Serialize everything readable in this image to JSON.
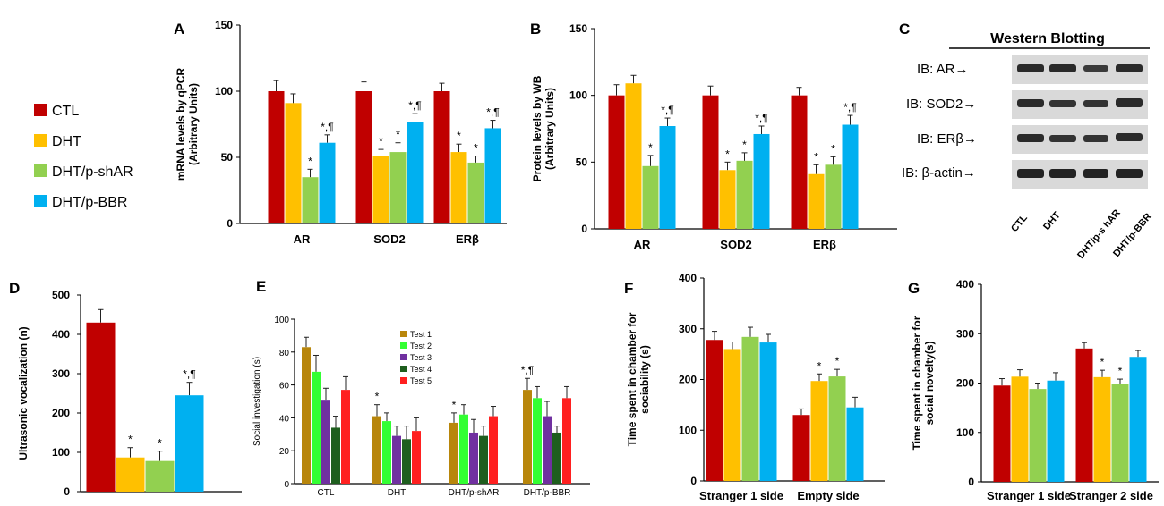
{
  "figure": {
    "legend": [
      {
        "label": "CTL",
        "color": "#C00000"
      },
      {
        "label": "DHT",
        "color": "#FFC000"
      },
      {
        "label": "DHT/p-shAR",
        "color": "#92D050"
      },
      {
        "label": "DHT/p-BBR",
        "color": "#00B0F0"
      }
    ],
    "western_blot": {
      "letter": "C",
      "title": "Western Blotting",
      "rows": [
        {
          "label": "IB: AR→"
        },
        {
          "label": "IB: SOD2→"
        },
        {
          "label": "IB: ERβ→"
        },
        {
          "label": "IB: β-actin→"
        }
      ],
      "lanes": [
        "CTL",
        "DHT",
        "DHT/p-s hAR",
        "DHT/p-BBR"
      ]
    },
    "panel_e_legend": [
      {
        "label": "Test 1",
        "color": "#B8860B"
      },
      {
        "label": "Test 2",
        "color": "#33FF33"
      },
      {
        "label": "Test 3",
        "color": "#7030A0"
      },
      {
        "label": "Test 4",
        "color": "#1E5E1E"
      },
      {
        "label": "Test 5",
        "color": "#FF2020"
      }
    ]
  },
  "chart_data": [
    {
      "id": "A",
      "letter": "A",
      "type": "bar",
      "ylabel": "mRNA levels by qPCR (Arbitrary Units)",
      "ylabel_lines": [
        "mRNA levels by qPCR",
        "(Arbitrary Units)"
      ],
      "ylim": [
        0,
        150
      ],
      "yticks": [
        "0",
        "50",
        "100",
        "150"
      ],
      "categories": [
        "AR",
        "SOD2",
        "ERβ"
      ],
      "series": [
        {
          "name": "CTL",
          "values": [
            100,
            100,
            100
          ],
          "errors": [
            8,
            7,
            6
          ]
        },
        {
          "name": "DHT",
          "values": [
            91,
            51,
            54
          ],
          "errors": [
            7,
            5,
            6
          ]
        },
        {
          "name": "DHT/p-shAR",
          "values": [
            35,
            54,
            46
          ],
          "errors": [
            6,
            7,
            5
          ]
        },
        {
          "name": "DHT/p-BBR",
          "values": [
            61,
            77,
            72
          ],
          "errors": [
            6,
            6,
            6
          ]
        }
      ],
      "significance": [
        {
          "category": 0,
          "series": 2,
          "mark": "*"
        },
        {
          "category": 0,
          "series": 3,
          "mark": "*,¶"
        },
        {
          "category": 1,
          "series": 1,
          "mark": "*"
        },
        {
          "category": 1,
          "series": 2,
          "mark": "*"
        },
        {
          "category": 1,
          "series": 3,
          "mark": "*,¶"
        },
        {
          "category": 2,
          "series": 1,
          "mark": "*"
        },
        {
          "category": 2,
          "series": 2,
          "mark": "*"
        },
        {
          "category": 2,
          "series": 3,
          "mark": "*,¶"
        }
      ]
    },
    {
      "id": "B",
      "letter": "B",
      "type": "bar",
      "ylabel": "Protein levels by WB (Arbitrary Units)",
      "ylabel_lines": [
        "Protein levels by WB",
        "(Arbitrary Units)"
      ],
      "ylim": [
        0,
        150
      ],
      "yticks": [
        "0",
        "50",
        "100",
        "150"
      ],
      "categories": [
        "AR",
        "SOD2",
        "ERβ"
      ],
      "series": [
        {
          "name": "CTL",
          "values": [
            100,
            100,
            100
          ],
          "errors": [
            8,
            7,
            6
          ]
        },
        {
          "name": "DHT",
          "values": [
            109,
            44,
            41
          ],
          "errors": [
            6,
            6,
            7
          ]
        },
        {
          "name": "DHT/p-shAR",
          "values": [
            47,
            51,
            48
          ],
          "errors": [
            8,
            6,
            6
          ]
        },
        {
          "name": "DHT/p-BBR",
          "values": [
            77,
            71,
            78
          ],
          "errors": [
            6,
            6,
            7
          ]
        }
      ],
      "significance": [
        {
          "category": 0,
          "series": 2,
          "mark": "*"
        },
        {
          "category": 0,
          "series": 3,
          "mark": "*,¶"
        },
        {
          "category": 1,
          "series": 1,
          "mark": "*"
        },
        {
          "category": 1,
          "series": 2,
          "mark": "*"
        },
        {
          "category": 1,
          "series": 3,
          "mark": "*,¶"
        },
        {
          "category": 2,
          "series": 1,
          "mark": "*"
        },
        {
          "category": 2,
          "series": 2,
          "mark": "*"
        },
        {
          "category": 2,
          "series": 3,
          "mark": "*,¶"
        }
      ]
    },
    {
      "id": "D",
      "letter": "D",
      "type": "bar",
      "ylabel": "Ultrasonic vocalization (n)",
      "ylabel_lines": [
        "Ultrasonic vocalization (n)"
      ],
      "ylim": [
        0,
        500
      ],
      "yticks": [
        "0",
        "100",
        "200",
        "300",
        "400",
        "500"
      ],
      "categories": [
        ""
      ],
      "series": [
        {
          "name": "CTL",
          "values": [
            430
          ],
          "errors": [
            33
          ]
        },
        {
          "name": "DHT",
          "values": [
            87
          ],
          "errors": [
            25
          ]
        },
        {
          "name": "DHT/p-shAR",
          "values": [
            78
          ],
          "errors": [
            25
          ]
        },
        {
          "name": "DHT/p-BBR",
          "values": [
            245
          ],
          "errors": [
            33
          ]
        }
      ],
      "significance": [
        {
          "category": 0,
          "series": 1,
          "mark": "*"
        },
        {
          "category": 0,
          "series": 2,
          "mark": "*"
        },
        {
          "category": 0,
          "series": 3,
          "mark": "*,¶"
        }
      ]
    },
    {
      "id": "E",
      "letter": "E",
      "type": "bar",
      "ylabel": "Social investigation (s)",
      "ylabel_lines": [
        "Social investigation (s)"
      ],
      "ylim": [
        0,
        100
      ],
      "yticks": [
        "0",
        "20",
        "40",
        "60",
        "80",
        "100"
      ],
      "categories": [
        "CTL",
        "DHT",
        "DHT/p-shAR",
        "DHT/p-BBR"
      ],
      "series": [
        {
          "name": "Test 1",
          "values": [
            83,
            41,
            37,
            57
          ],
          "errors": [
            6,
            7,
            6,
            7
          ]
        },
        {
          "name": "Test 2",
          "values": [
            68,
            38,
            42,
            52
          ],
          "errors": [
            10,
            5,
            6,
            7
          ]
        },
        {
          "name": "Test 3",
          "values": [
            51,
            29,
            31,
            41
          ],
          "errors": [
            7,
            6,
            8,
            9
          ]
        },
        {
          "name": "Test 4",
          "values": [
            34,
            27,
            29,
            31
          ],
          "errors": [
            7,
            8,
            6,
            4
          ]
        },
        {
          "name": "Test 5",
          "values": [
            57,
            32,
            41,
            52
          ],
          "errors": [
            8,
            8,
            6,
            7
          ]
        }
      ],
      "significance": [
        {
          "category": 1,
          "series": 0,
          "mark": "*"
        },
        {
          "category": 2,
          "series": 0,
          "mark": "*"
        },
        {
          "category": 3,
          "series": 0,
          "mark": "*,¶"
        }
      ]
    },
    {
      "id": "F",
      "letter": "F",
      "type": "bar",
      "ylabel": "Time spent in chamber for sociability (s)",
      "ylabel_lines": [
        "Time spent in chamber for",
        "sociability (s)"
      ],
      "ylim": [
        0,
        400
      ],
      "yticks": [
        "0",
        "100",
        "200",
        "300",
        "400"
      ],
      "categories": [
        "Stranger 1 side",
        "Empty side"
      ],
      "series": [
        {
          "name": "CTL",
          "values": [
            278,
            130
          ],
          "errors": [
            17,
            12
          ]
        },
        {
          "name": "DHT",
          "values": [
            260,
            197
          ],
          "errors": [
            14,
            14
          ]
        },
        {
          "name": "DHT/p-shAR",
          "values": [
            284,
            206
          ],
          "errors": [
            19,
            14
          ]
        },
        {
          "name": "DHT/p-BBR",
          "values": [
            273,
            145
          ],
          "errors": [
            16,
            20
          ]
        }
      ],
      "significance": [
        {
          "category": 1,
          "series": 1,
          "mark": "*"
        },
        {
          "category": 1,
          "series": 2,
          "mark": "*"
        }
      ]
    },
    {
      "id": "G",
      "letter": "G",
      "type": "bar",
      "ylabel": "Time spent in chamber for social novelty (s)",
      "ylabel_lines": [
        "Time spent in chamber for",
        "social novelty(s)"
      ],
      "ylim": [
        0,
        400
      ],
      "yticks": [
        "0",
        "100",
        "200",
        "300",
        "400"
      ],
      "categories": [
        "Stranger 1 side",
        "Stranger 2 side"
      ],
      "series": [
        {
          "name": "CTL",
          "values": [
            195,
            270
          ],
          "errors": [
            14,
            12
          ]
        },
        {
          "name": "DHT",
          "values": [
            213,
            212
          ],
          "errors": [
            14,
            14
          ]
        },
        {
          "name": "DHT/p-shAR",
          "values": [
            188,
            198
          ],
          "errors": [
            12,
            10
          ]
        },
        {
          "name": "DHT/p-BBR",
          "values": [
            205,
            253
          ],
          "errors": [
            16,
            13
          ]
        }
      ],
      "significance": [
        {
          "category": 1,
          "series": 1,
          "mark": "*"
        },
        {
          "category": 1,
          "series": 2,
          "mark": "*"
        }
      ]
    }
  ]
}
